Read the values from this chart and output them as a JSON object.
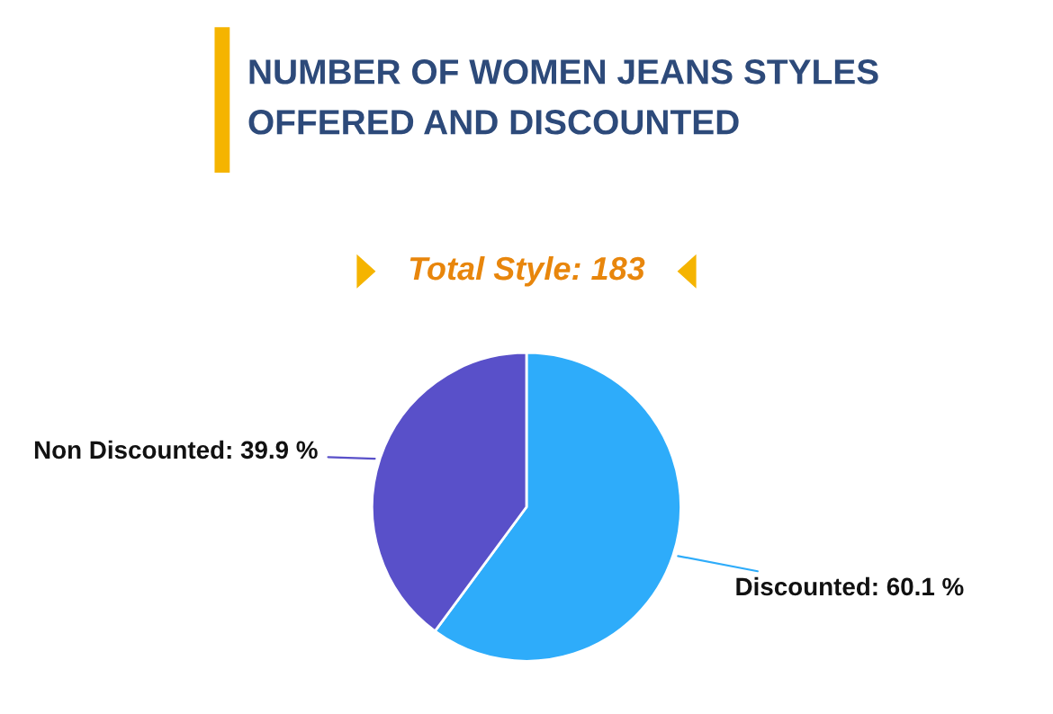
{
  "chart_data": {
    "type": "pie",
    "title": "NUMBER OF WOMEN JEANS STYLES\nOFFERED AND DISCOUNTED",
    "subtitle": "Total Style: 183",
    "categories": [
      "Discounted: 60.1 %",
      "Non Discounted: 39.9 %"
    ],
    "values": [
      60.1,
      39.9
    ],
    "colors": [
      "#2eacfa",
      "#5950c9"
    ],
    "legend": false
  }
}
